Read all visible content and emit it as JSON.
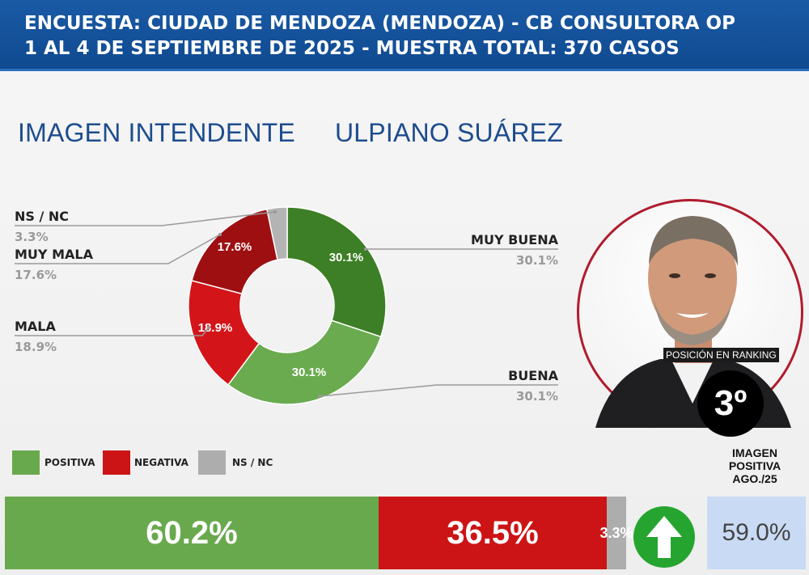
{
  "header": {
    "line1": "ENCUESTA: CIUDAD DE MENDOZA (MENDOZA) - CB CONSULTORA OP",
    "line2": "1 AL 4 DE SEPTIEMBRE DE 2025 - MUESTRA TOTAL: 370 CASOS"
  },
  "titles": {
    "left": "IMAGEN INTENDENTE",
    "right": "ULPIANO SUÁREZ"
  },
  "chart_data": [
    {
      "type": "pie",
      "variant": "donut",
      "slices": [
        {
          "label": "MUY BUENA",
          "value": 30.1,
          "value_label": "30.1%",
          "color": "#3d7f26"
        },
        {
          "label": "BUENA",
          "value": 30.1,
          "value_label": "30.1%",
          "color": "#6aab4f"
        },
        {
          "label": "MALA",
          "value": 18.9,
          "value_label": "18.9%",
          "color": "#d31519"
        },
        {
          "label": "MUY MALA",
          "value": 17.6,
          "value_label": "17.6%",
          "color": "#9e0f12"
        },
        {
          "label": "NS / NC",
          "value": 3.3,
          "value_label": "3.3%",
          "color": "#b4b4b4"
        }
      ]
    },
    {
      "type": "bar",
      "orientation": "horizontal-stacked",
      "categories": [
        "POSITIVA",
        "NEGATIVA",
        "NS / NC"
      ],
      "values": [
        60.2,
        36.5,
        3.3
      ],
      "value_labels": [
        "60.2%",
        "36.5%",
        "3.3%"
      ],
      "colors": [
        "#69a94d",
        "#cc1416",
        "#adadad"
      ]
    }
  ],
  "legend": [
    {
      "label": "POSITIVA",
      "color": "#69a94d"
    },
    {
      "label": "NEGATIVA",
      "color": "#cc1416"
    },
    {
      "label": "NS / NC",
      "color": "#adadad"
    }
  ],
  "ranking": {
    "caption": "POSICIÓN EN RANKING",
    "value": "3º"
  },
  "previous": {
    "label_line1": "IMAGEN",
    "label_line2": "POSITIVA",
    "label_line3": "AGO./25",
    "value": "59.0%",
    "trend_icon": "up-arrow-icon",
    "trend_color": "#25a52f"
  }
}
